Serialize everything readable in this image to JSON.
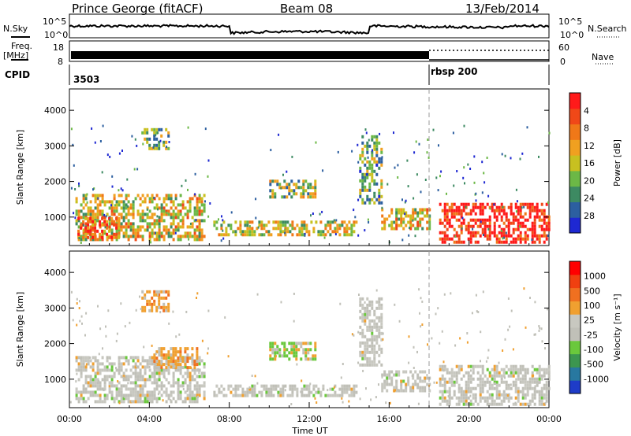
{
  "header": {
    "title": "Prince George (fitACF)",
    "beam": "Beam 08",
    "date": "13/Feb/2014"
  },
  "status_panel": {
    "nsky_label": "N.Sky",
    "nsearch_label": "N.Search",
    "noise_ticks": [
      "10^5",
      "10^0"
    ],
    "freq_label_1": "Freq.",
    "freq_label_2": "[MHz]",
    "freq_ticks": [
      "18",
      "8"
    ],
    "nave_label": "Nave",
    "nave_ticks": [
      "60",
      "0"
    ],
    "cpid_label": "CPID",
    "cpid_1": "3503",
    "cpid_2": "rbsp 200"
  },
  "chart_data": [
    {
      "type": "heatmap",
      "title": "",
      "ylabel": "Slant Range [km]",
      "xlabel": "",
      "xlim": [
        0,
        24
      ],
      "ylim": [
        200,
        4600
      ],
      "yticks": [
        1000,
        2000,
        3000,
        4000
      ],
      "colorbar_label": "Power [dB]",
      "colorbar_ticks": [
        4,
        8,
        12,
        16,
        20,
        24,
        28
      ],
      "colorbar_colors": [
        "#1e28d2",
        "#2c5fa0",
        "#3d8a62",
        "#6cb846",
        "#c8c020",
        "#f0a020",
        "#f07818",
        "#f04818",
        "#ff1a1a"
      ],
      "mode_change_time": 18.0,
      "regions": [
        {
          "t": [
            0.3,
            6.8
          ],
          "r": [
            400,
            1650
          ],
          "level": 0.55
        },
        {
          "t": [
            0.4,
            2.5
          ],
          "r": [
            400,
            1000
          ],
          "level": 0.8
        },
        {
          "t": [
            7.2,
            14.4
          ],
          "r": [
            500,
            900
          ],
          "level": 0.5
        },
        {
          "t": [
            10.0,
            12.3
          ],
          "r": [
            1600,
            2050
          ],
          "level": 0.4
        },
        {
          "t": [
            14.5,
            15.6
          ],
          "r": [
            1400,
            3300
          ],
          "level": 0.35
        },
        {
          "t": [
            15.6,
            18.0
          ],
          "r": [
            650,
            1250
          ],
          "level": 0.55
        },
        {
          "t": [
            18.5,
            24.0
          ],
          "r": [
            300,
            1400
          ],
          "level": 0.95
        },
        {
          "t": [
            3.6,
            5.0
          ],
          "r": [
            2900,
            3500
          ],
          "level": 0.4
        }
      ]
    },
    {
      "type": "heatmap",
      "title": "",
      "ylabel": "Slant Range [km]",
      "xlabel": "Time UT",
      "xlim": [
        0,
        24
      ],
      "ylim": [
        200,
        4600
      ],
      "yticks": [
        1000,
        2000,
        3000,
        4000
      ],
      "xticks": [
        "00:00",
        "04:00",
        "08:00",
        "12:00",
        "16:00",
        "20:00",
        "00:00"
      ],
      "colorbar_label": "Velocity [m s⁻¹]",
      "colorbar_ticks": [
        1000,
        500,
        100,
        25,
        -25,
        -100,
        -500,
        -1000
      ],
      "colorbar_colors": [
        "#1e3cc8",
        "#2878a0",
        "#3c9650",
        "#6ac83c",
        "#c0c0b8",
        "#c8c8c0",
        "#f0a030",
        "#f07020",
        "#f04010",
        "#ff0000"
      ],
      "mode_change_time": 18.0,
      "regions": [
        {
          "t": [
            0.3,
            6.8
          ],
          "r": [
            400,
            1650
          ],
          "kind": "gray"
        },
        {
          "t": [
            4.2,
            6.4
          ],
          "r": [
            1300,
            1900
          ],
          "kind": "orange"
        },
        {
          "t": [
            7.2,
            14.4
          ],
          "r": [
            550,
            850
          ],
          "kind": "gray"
        },
        {
          "t": [
            10.0,
            12.3
          ],
          "r": [
            1600,
            2050
          ],
          "kind": "mixed"
        },
        {
          "t": [
            14.5,
            15.6
          ],
          "r": [
            1400,
            3300
          ],
          "kind": "gray"
        },
        {
          "t": [
            15.6,
            18.0
          ],
          "r": [
            650,
            1250
          ],
          "kind": "gray"
        },
        {
          "t": [
            18.5,
            24.0
          ],
          "r": [
            300,
            1400
          ],
          "kind": "gray"
        },
        {
          "t": [
            3.6,
            5.0
          ],
          "r": [
            2900,
            3500
          ],
          "kind": "orange"
        }
      ]
    }
  ]
}
